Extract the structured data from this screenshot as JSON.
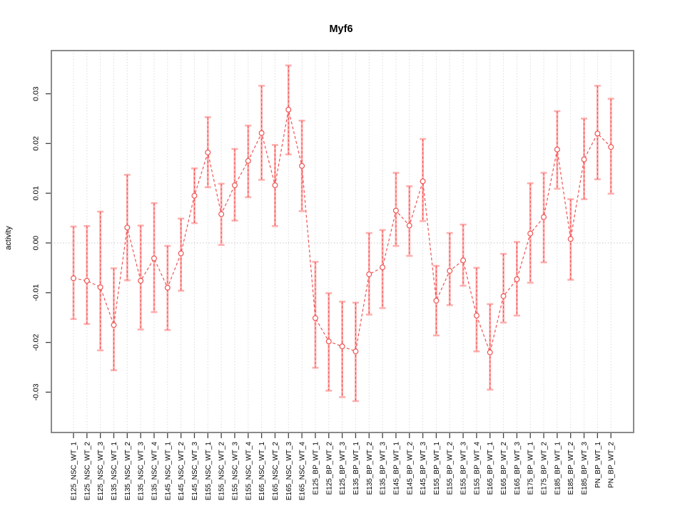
{
  "page": {
    "background": "#ffffff"
  },
  "chart_data": {
    "type": "line",
    "title": "Myf6",
    "xlabel": "",
    "ylabel": "activity",
    "legend": "none",
    "grid": "dotted vertical gridline at every category; dotted horizontal line at y=0",
    "marker": "open-circle",
    "line_style": "dashed",
    "error_bars": "capped vertical CI bars",
    "ylim": [
      -0.0384,
      0.0384
    ],
    "ytick_labels": [
      "0.03",
      "0.02",
      "0.01",
      "0.00",
      "-0.01",
      "-0.02",
      "-0.03"
    ],
    "ytick_values": [
      0.03,
      0.02,
      0.01,
      0.0,
      -0.01,
      -0.02,
      -0.03
    ],
    "categories": [
      "E125_NSC_WT_1",
      "E125_NSC_WT_2",
      "E125_NSC_WT_3",
      "E135_NSC_WT_1",
      "E135_NSC_WT_2",
      "E135_NSC_WT_3",
      "E135_NSC_WT_4",
      "E145_NSC_WT_1",
      "E145_NSC_WT_2",
      "E145_NSC_WT_3",
      "E155_NSC_WT_1",
      "E155_NSC_WT_2",
      "E155_NSC_WT_3",
      "E155_NSC_WT_4",
      "E165_NSC_WT_1",
      "E165_NSC_WT_2",
      "E165_NSC_WT_3",
      "E165_NSC_WT_4",
      "E125_BP_WT_1",
      "E125_BP_WT_2",
      "E125_BP_WT_3",
      "E135_BP_WT_1",
      "E135_BP_WT_2",
      "E135_BP_WT_3",
      "E145_BP_WT_1",
      "E145_BP_WT_2",
      "E145_BP_WT_3",
      "E155_BP_WT_1",
      "E155_BP_WT_2",
      "E155_BP_WT_3",
      "E155_BP_WT_4",
      "E165_BP_WT_1",
      "E165_BP_WT_2",
      "E165_BP_WT_3",
      "E175_BP_WT_1",
      "E175_BP_WT_2",
      "E185_BP_WT_1",
      "E185_BP_WT_2",
      "E185_BP_WT_3",
      "PN_BP_WT_1",
      "PN_BP_WT_2"
    ],
    "values": [
      -0.0071,
      -0.0076,
      -0.0089,
      -0.0165,
      0.0031,
      -0.0076,
      -0.0031,
      -0.009,
      -0.0021,
      0.0095,
      0.0182,
      0.0058,
      0.0116,
      0.0165,
      0.0221,
      0.0116,
      0.0268,
      0.0155,
      -0.0151,
      -0.0198,
      -0.0208,
      -0.0218,
      -0.0063,
      -0.0049,
      0.0065,
      0.0035,
      0.0124,
      -0.0116,
      -0.0056,
      -0.0035,
      -0.0146,
      -0.022,
      -0.0107,
      -0.0073,
      0.0019,
      0.0052,
      0.0188,
      0.0008,
      0.0168,
      0.022,
      0.0193
    ],
    "ci_upper": [
      0.0033,
      0.0034,
      0.0063,
      -0.0051,
      0.0137,
      0.0035,
      0.008,
      -0.0006,
      0.0049,
      0.015,
      0.0253,
      0.0119,
      0.0189,
      0.0236,
      0.0316,
      0.0197,
      0.0357,
      0.0246,
      -0.0038,
      -0.0101,
      -0.0118,
      -0.012,
      0.002,
      0.0026,
      0.0141,
      0.0114,
      0.0209,
      -0.0046,
      0.002,
      0.0037,
      -0.005,
      -0.0123,
      -0.0022,
      0.0002,
      0.012,
      0.0141,
      0.0265,
      0.0088,
      0.025,
      0.0316,
      0.029
    ],
    "ci_lower": [
      -0.0153,
      -0.0163,
      -0.0216,
      -0.0256,
      -0.0075,
      -0.0174,
      -0.0139,
      -0.0175,
      -0.0096,
      0.004,
      0.0112,
      -0.0004,
      0.0045,
      0.0092,
      0.0127,
      0.0034,
      0.0178,
      0.0064,
      -0.0251,
      -0.0297,
      -0.031,
      -0.0318,
      -0.0144,
      -0.0131,
      -0.0006,
      -0.0026,
      0.0044,
      -0.0186,
      -0.0125,
      -0.0086,
      -0.0218,
      -0.0295,
      -0.016,
      -0.0146,
      -0.008,
      -0.0039,
      0.0109,
      -0.0074,
      0.0088,
      0.0128,
      0.0099
    ]
  },
  "colors": {
    "series": "#ef5353",
    "error_cap": "#ffafaf",
    "marker_fill": "#ffffff",
    "gridline": "#dcdcdc",
    "zero_line": "#c8c8c8",
    "plot_border": "#8a8a8a",
    "tick": "#404040",
    "text": "#000000"
  }
}
